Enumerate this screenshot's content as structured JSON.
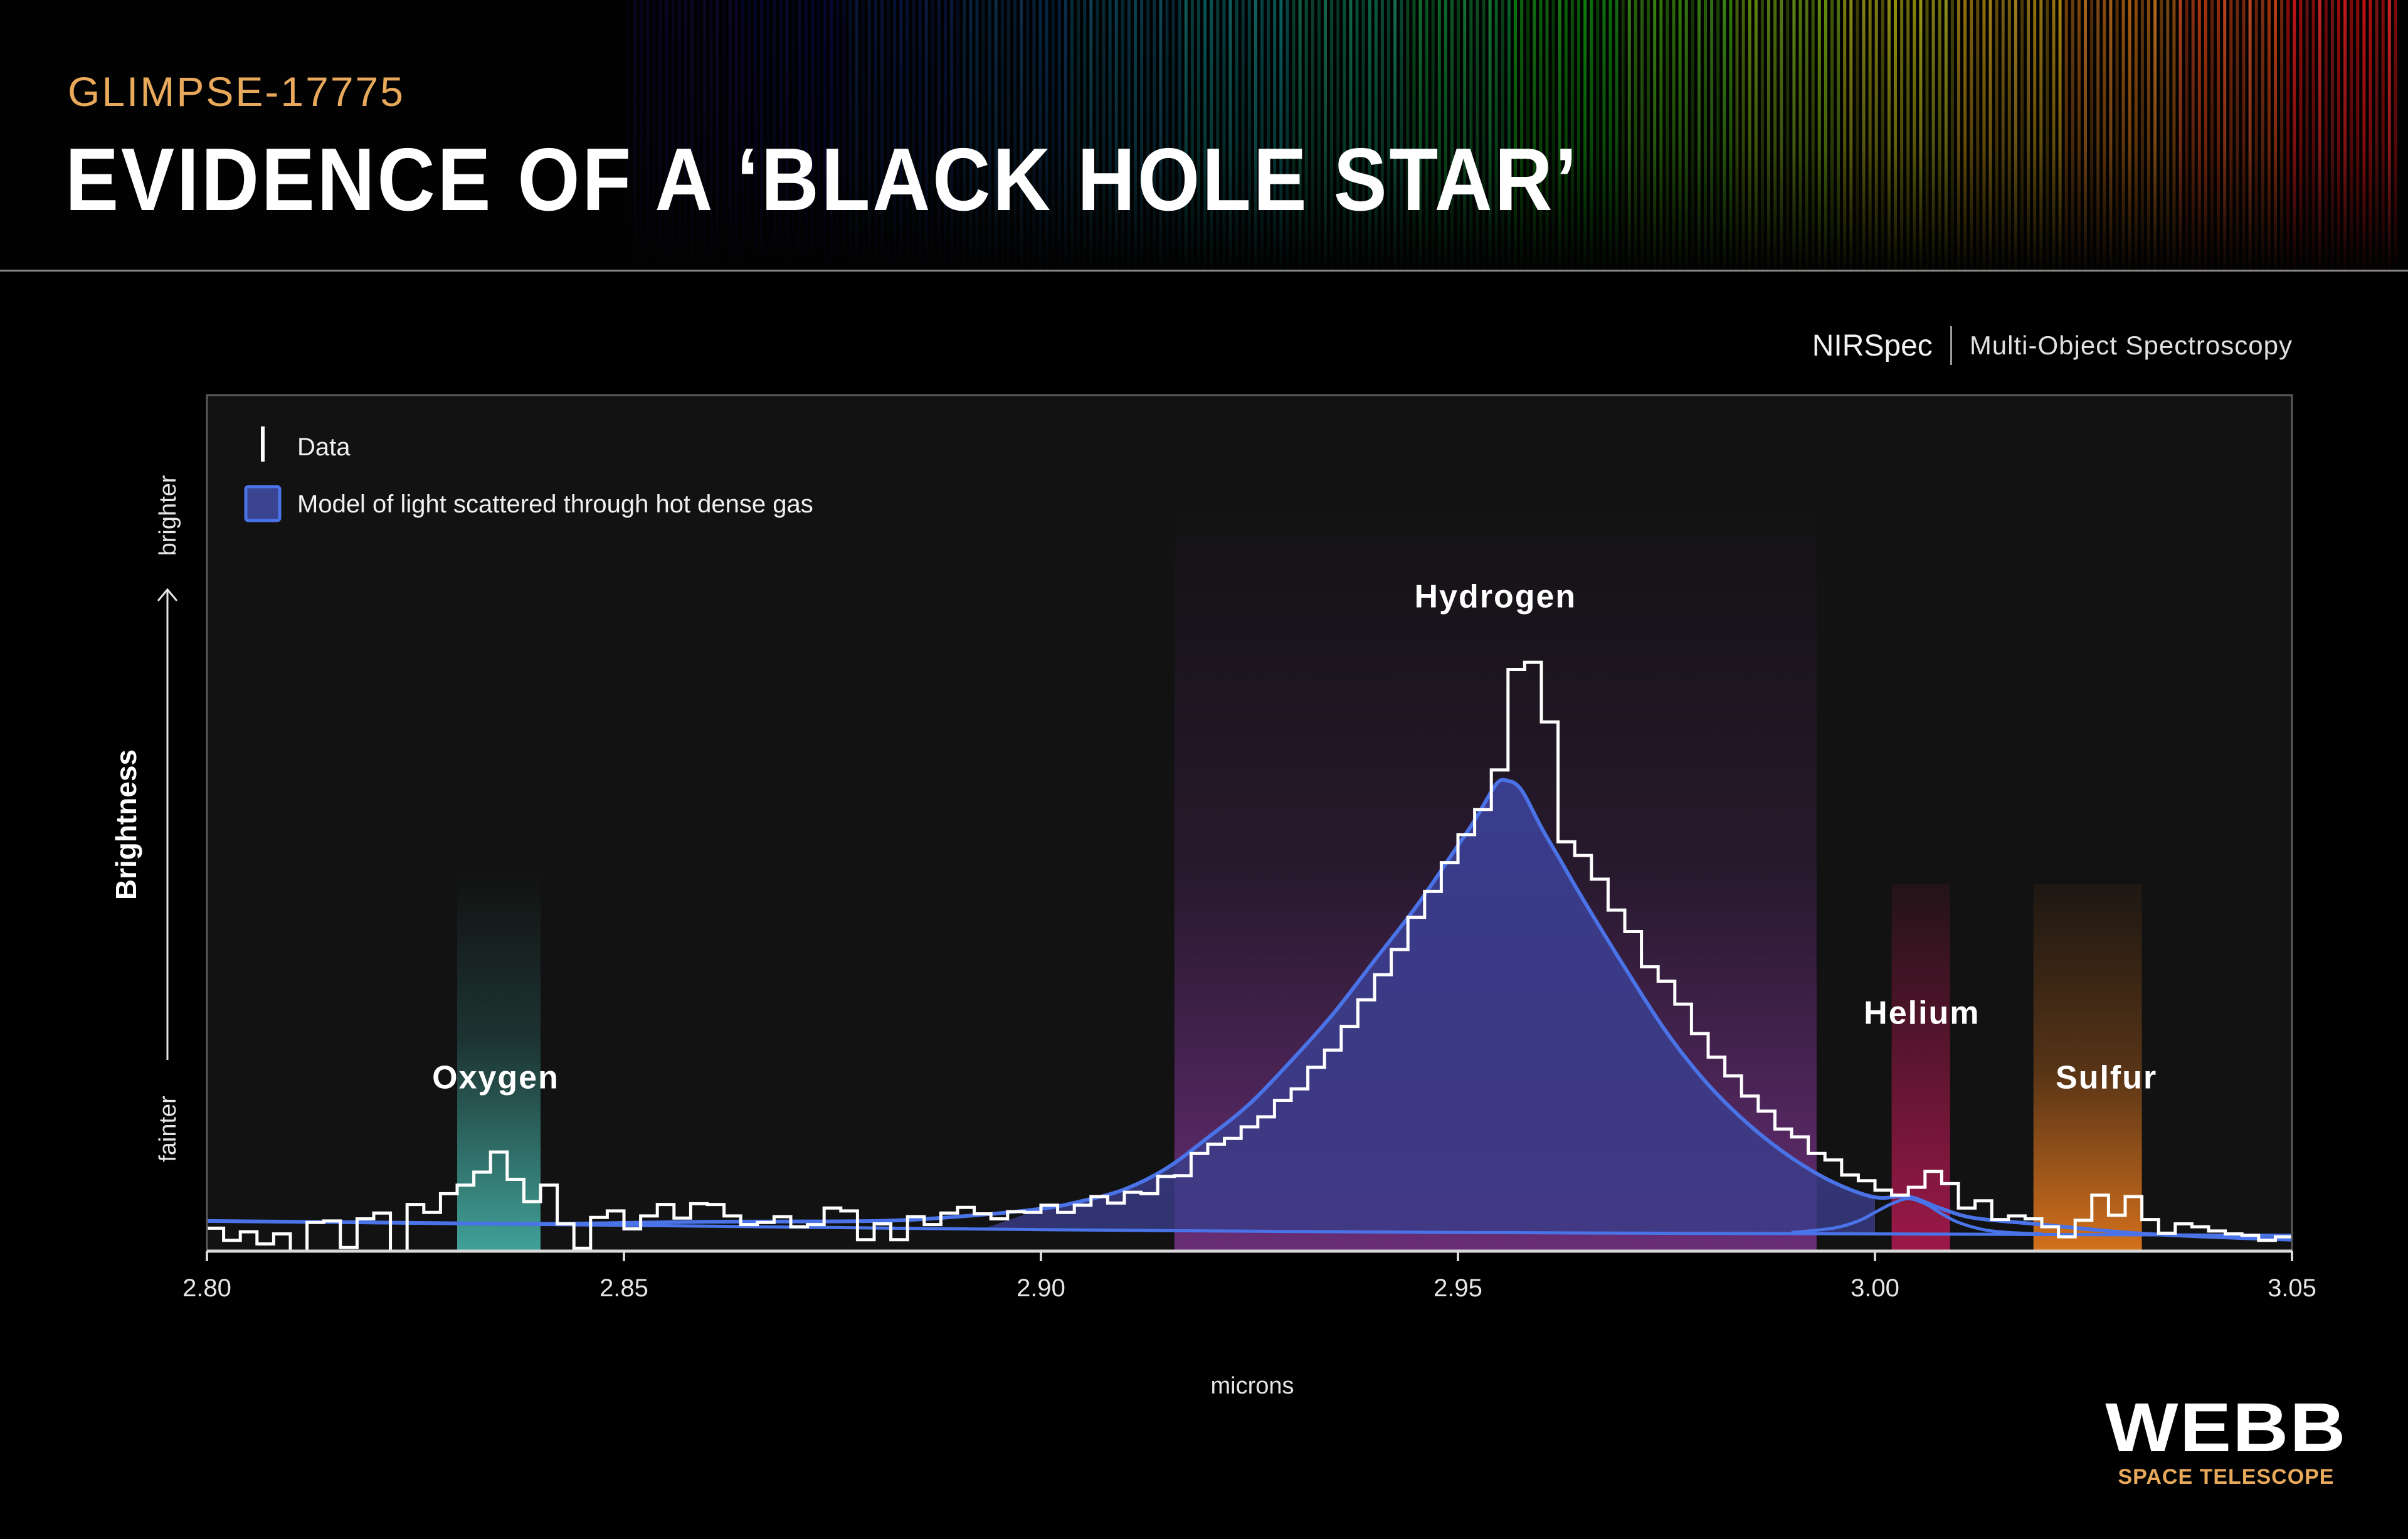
{
  "header": {
    "kicker": "GLIMPSE-17775",
    "title": "EVIDENCE OF A ‘BLACK HOLE STAR’"
  },
  "instrument": {
    "name": "NIRSpec",
    "mode": "Multi-Object Spectroscopy"
  },
  "logo": {
    "name": "WEBB",
    "subtitle": "SPACE TELESCOPE"
  },
  "colors": {
    "model": "#4a73e8",
    "model_fill": "#3a4490",
    "oxygen": "#4fd1c5",
    "hydrogen": "#9b3fbf",
    "helium": "#d81b60",
    "sulfur": "#f5811f",
    "kicker": "#e8a95b",
    "panel": "#121212"
  },
  "chart_data": {
    "type": "line",
    "xlabel": "",
    "xunit": "microns",
    "ylabel": "Brightness",
    "y_scale_labels": [
      "brighter",
      "fainter"
    ],
    "xlim": [
      2.8,
      3.05
    ],
    "ylim": [
      0,
      100
    ],
    "x_ticks": [
      "2.80",
      "2.85",
      "2.90",
      "2.95",
      "3.00",
      "3.05"
    ],
    "legend": [
      {
        "key": "data",
        "label": "Data"
      },
      {
        "key": "model",
        "label": "Model of light scattered through hot dense gas"
      }
    ],
    "legend_position": "top-left",
    "lines": [
      {
        "name": "Oxygen",
        "x": 2.836,
        "x_min": 2.83,
        "x_max": 2.84,
        "y_label": 23
      },
      {
        "name": "Hydrogen",
        "x": 2.9556,
        "x_min": 2.916,
        "x_max": 2.993,
        "y_label": 90
      },
      {
        "name": "Helium",
        "x": 3.0045,
        "x_min": 3.002,
        "x_max": 3.009,
        "y_label": 32
      },
      {
        "name": "Sulfur",
        "x": 3.025,
        "x_min": 3.019,
        "x_max": 3.032,
        "y_label": 23
      }
    ],
    "series": [
      {
        "key": "data",
        "style": "step",
        "x": [
          2.8,
          2.802,
          2.804,
          2.806,
          2.808,
          2.81,
          2.812,
          2.814,
          2.816,
          2.818,
          2.82,
          2.822,
          2.824,
          2.826,
          2.828,
          2.83,
          2.832,
          2.834,
          2.836,
          2.838,
          2.84,
          2.842,
          2.844,
          2.846,
          2.848,
          2.85,
          2.852,
          2.854,
          2.856,
          2.858,
          2.86,
          2.862,
          2.864,
          2.866,
          2.868,
          2.87,
          2.872,
          2.874,
          2.876,
          2.878,
          2.88,
          2.882,
          2.884,
          2.886,
          2.888,
          2.89,
          2.892,
          2.894,
          2.896,
          2.898,
          2.9,
          2.902,
          2.904,
          2.906,
          2.908,
          2.91,
          2.912,
          2.914,
          2.916,
          2.918,
          2.92,
          2.922,
          2.924,
          2.926,
          2.928,
          2.93,
          2.932,
          2.934,
          2.936,
          2.938,
          2.94,
          2.942,
          2.944,
          2.946,
          2.948,
          2.95,
          2.952,
          2.954,
          2.956,
          2.958,
          2.96,
          2.962,
          2.964,
          2.966,
          2.968,
          2.97,
          2.972,
          2.974,
          2.976,
          2.978,
          2.98,
          2.982,
          2.984,
          2.986,
          2.988,
          2.99,
          2.992,
          2.994,
          2.996,
          2.998,
          3.0,
          3.002,
          3.004,
          3.006,
          3.008,
          3.01,
          3.012,
          3.014,
          3.016,
          3.018,
          3.02,
          3.022,
          3.024,
          3.026,
          3.028,
          3.03,
          3.032,
          3.034,
          3.036,
          3.038,
          3.04,
          3.042,
          3.044,
          3.046,
          3.048
        ],
        "y": [
          3.2,
          1.5,
          2.7,
          1.0,
          2.4,
          0,
          4.0,
          4.2,
          0.5,
          4.5,
          5.3,
          0,
          6.5,
          5.4,
          8.0,
          9.2,
          11.0,
          13.8,
          10.0,
          6.9,
          9.2,
          3.8,
          0.4,
          4.7,
          5.6,
          3.1,
          4.9,
          6.5,
          4.6,
          6.6,
          6.5,
          4.9,
          3.7,
          4.0,
          4.8,
          3.4,
          3.7,
          6.0,
          5.6,
          1.6,
          3.8,
          1.6,
          4.8,
          3.7,
          5.3,
          6.1,
          5.2,
          4.5,
          5.5,
          5.4,
          6.4,
          5.4,
          6.4,
          7.6,
          6.7,
          8.2,
          8.0,
          10.4,
          10.5,
          13.6,
          14.9,
          15.7,
          17.3,
          18.7,
          21.0,
          22.6,
          25.6,
          28.0,
          31.3,
          35.0,
          38.5,
          42.0,
          46.5,
          50.1,
          54.1,
          58.0,
          61.5,
          67.0,
          81.0,
          82.0,
          73.7,
          57.0,
          55.1,
          51.8,
          47.5,
          44.5,
          39.6,
          37.6,
          34.4,
          30.3,
          27.0,
          24.4,
          21.6,
          19.5,
          17.0,
          15.9,
          13.6,
          12.7,
          10.6,
          9.8,
          8.5,
          7.8,
          8.9,
          11.1,
          9.4,
          6.0,
          7.0,
          4.4,
          4.9,
          4.5,
          3.4,
          2.0,
          4.3,
          7.8,
          5.0,
          7.6,
          4.4,
          2.5,
          3.8,
          3.4,
          2.8,
          2.4,
          2.2,
          1.5,
          2.0
        ]
      },
      {
        "key": "model",
        "style": "smooth",
        "x": [
          2.8,
          2.82,
          2.84,
          2.86,
          2.88,
          2.89,
          2.9,
          2.905,
          2.91,
          2.915,
          2.92,
          2.925,
          2.93,
          2.935,
          2.94,
          2.945,
          2.95,
          2.952,
          2.954,
          2.955,
          2.956,
          2.957,
          2.958,
          2.96,
          2.962,
          2.965,
          2.97,
          2.975,
          2.98,
          2.985,
          2.99,
          2.995,
          3.0,
          3.004,
          3.008,
          3.012,
          3.02,
          3.03,
          3.04,
          3.05
        ],
        "y": [
          4.2,
          4.0,
          3.8,
          4.1,
          4.2,
          4.8,
          5.9,
          7.0,
          8.6,
          11.5,
          15.8,
          20.5,
          26.5,
          33.0,
          40.5,
          48.0,
          56.5,
          60.0,
          64.0,
          65.5,
          65.5,
          65.0,
          63.5,
          59.0,
          55.0,
          49.0,
          39.5,
          30.5,
          23.2,
          17.5,
          13.0,
          9.6,
          7.5,
          7.6,
          5.9,
          4.6,
          3.7,
          2.6,
          2.0,
          1.6
        ]
      },
      {
        "key": "continuum",
        "style": "smooth",
        "x": [
          2.8,
          2.85,
          2.9,
          2.95,
          3.0,
          3.05
        ],
        "y": [
          4.2,
          3.6,
          3.0,
          2.6,
          2.4,
          2.2
        ]
      },
      {
        "key": "helium_model",
        "style": "smooth",
        "x": [
          2.99,
          2.995,
          2.998,
          3.0,
          3.002,
          3.004,
          3.006,
          3.008,
          3.01,
          3.013,
          3.016,
          3.02
        ],
        "y": [
          2.6,
          3.2,
          4.2,
          5.4,
          6.6,
          7.3,
          6.6,
          5.2,
          4.0,
          3.0,
          2.6,
          2.4
        ]
      }
    ]
  }
}
